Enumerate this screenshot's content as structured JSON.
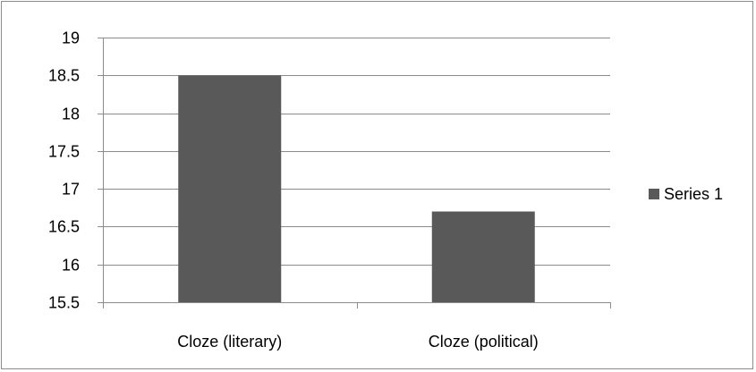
{
  "chart_data": {
    "type": "bar",
    "categories": [
      "Cloze (literary)",
      "Cloze (political)"
    ],
    "series": [
      {
        "name": "Series 1",
        "values": [
          18.5,
          16.7
        ],
        "color": "#595959"
      }
    ],
    "ylim": [
      15.5,
      19
    ],
    "yticks": [
      15.5,
      16,
      16.5,
      17,
      17.5,
      18,
      18.5,
      19
    ],
    "ytick_labels": [
      "15.5",
      "16",
      "16.5",
      "17",
      "17.5",
      "18",
      "18.5",
      "19"
    ],
    "grid": true,
    "legend_position": "right",
    "title": "",
    "xlabel": "",
    "ylabel": ""
  }
}
